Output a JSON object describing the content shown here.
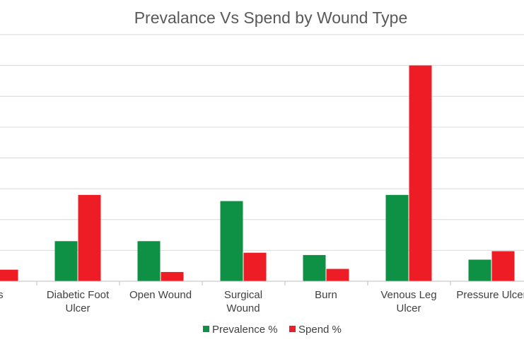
{
  "chart_data": {
    "type": "bar",
    "title": "Prevalance Vs Spend by Wound Type",
    "categories": [
      [
        "ess"
      ],
      [
        "Diabetic Foot",
        "Ulcer"
      ],
      [
        "Open Wound"
      ],
      [
        "Surgical",
        "Wound"
      ],
      [
        "Burn"
      ],
      [
        "Venous Leg",
        "Ulcer"
      ],
      [
        "Pressure Ulcer"
      ]
    ],
    "series": [
      {
        "name": "Prevalence %",
        "color": "#0f9145",
        "values": [
          null,
          5.2,
          5.2,
          10.4,
          3.4,
          11.2,
          2.8
        ]
      },
      {
        "name": "Spend %",
        "color": "#ee1c25",
        "values": [
          1.5,
          11.2,
          1.2,
          3.7,
          1.6,
          28.0,
          3.9
        ]
      }
    ],
    "ylim": [
      0,
      32
    ],
    "grid": true,
    "legend": "bottom",
    "xlabel": "",
    "ylabel": ""
  }
}
